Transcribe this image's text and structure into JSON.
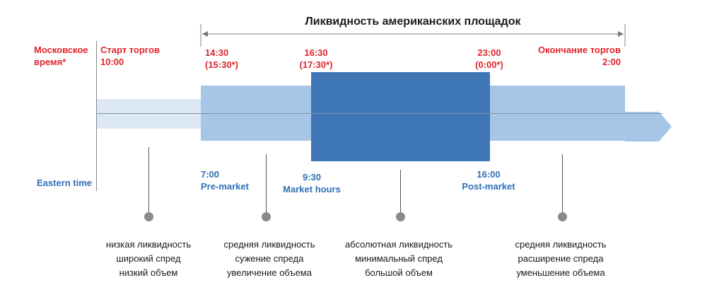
{
  "title": "Ликвидность американских площадок",
  "moscow_label": [
    "Московское",
    "время*"
  ],
  "eastern_label": "Eastern time",
  "moscow_times": {
    "start": [
      "Старт торгов",
      "10:00"
    ],
    "t1430": [
      "14:30",
      "(15:30*)"
    ],
    "t1630": [
      "16:30",
      "(17:30*)"
    ],
    "t2300": [
      "23:00",
      "(0:00*)"
    ],
    "end": [
      "Окончание торгов",
      "2:00"
    ]
  },
  "eastern_times": {
    "premarket": [
      "7:00",
      "Pre-market"
    ],
    "market": [
      "9:30",
      "Market hours"
    ],
    "postmarket": [
      "16:00",
      "Post-market"
    ]
  },
  "descriptions": [
    [
      "низкая ликвидность",
      "широкий спред",
      "низкий объем"
    ],
    [
      "средняя ликвидность",
      "сужение спреда",
      "увеличение объема"
    ],
    [
      "абсолютная ликвидность",
      "минимальный спред",
      "большой объем"
    ],
    [
      "средняя ликвидность",
      "расширение спреда",
      "уменьшение объема"
    ]
  ],
  "colors": {
    "light": "#dde8f5",
    "medium": "#a7c5e6",
    "dark": "#3f76b5",
    "arrow": "#a7c5e6",
    "red": "#e0242b",
    "blue": "#2f6fb6"
  }
}
